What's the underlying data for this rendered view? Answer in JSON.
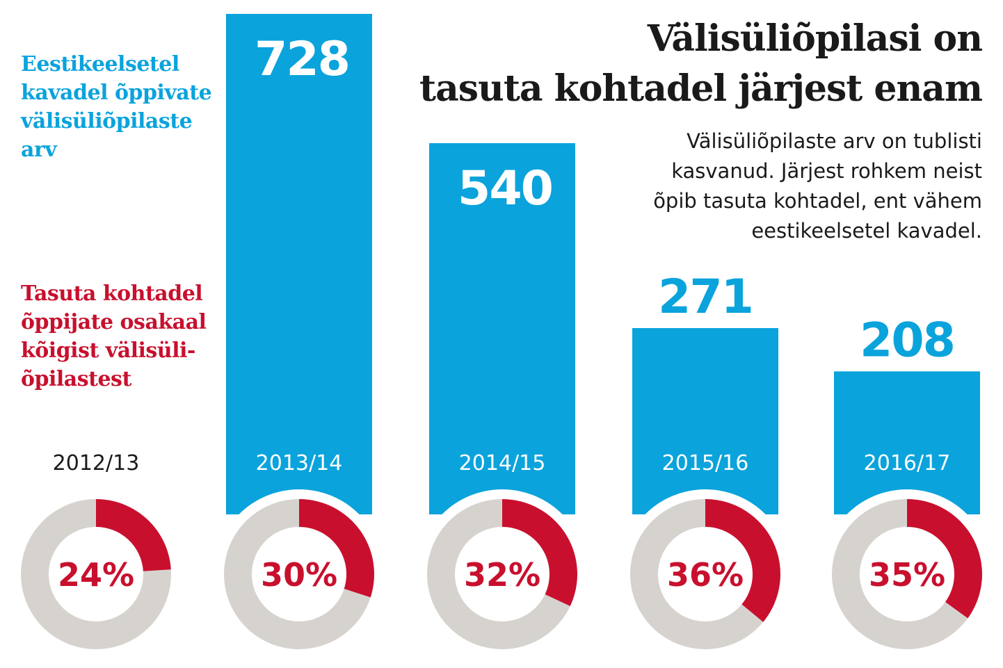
{
  "title_lines": [
    "Välisüliõpilasi on",
    "tasuta kohtadel järjest enam"
  ],
  "subtitle_lines": [
    "Välisüliõpilaste arv on tublisti",
    "kasvanud. Järjest rohkem neist",
    "õpib tasuta kohtadel, ent vähem",
    "eestikeelsetel kavadel."
  ],
  "legend_blue_lines": [
    "Eestikeelsetel",
    "kavadel õppivate",
    "välisüliõpilaste",
    "arv"
  ],
  "legend_red_lines": [
    "Tasuta kohtadel",
    "õppijate osakaal",
    "kõigist välisüli-",
    "õpilastest"
  ],
  "colors": {
    "blue": "#0aa3dc",
    "red": "#c8102e",
    "gray": "#d6d3cf",
    "dark": "#1a1a1a"
  },
  "chart_data": [
    {
      "type": "bar",
      "title": "",
      "categories": [
        "2013/14",
        "2014/15",
        "2015/16",
        "2016/17"
      ],
      "values": [
        728,
        540,
        271,
        208
      ],
      "value_labels": [
        "728",
        "540",
        "271",
        "208"
      ],
      "category_labels": [
        "2013/14",
        "2014/15",
        "2015/16",
        "2016/17"
      ],
      "ylim": [
        0,
        728
      ]
    },
    {
      "type": "pie",
      "categories": [
        "2012/13",
        "2013/14",
        "2014/15",
        "2015/16",
        "2016/17"
      ],
      "values": [
        24,
        30,
        32,
        36,
        35
      ],
      "value_labels": [
        "24%",
        "30%",
        "32%",
        "36%",
        "35%"
      ],
      "first_category_label": "2012/13"
    }
  ]
}
